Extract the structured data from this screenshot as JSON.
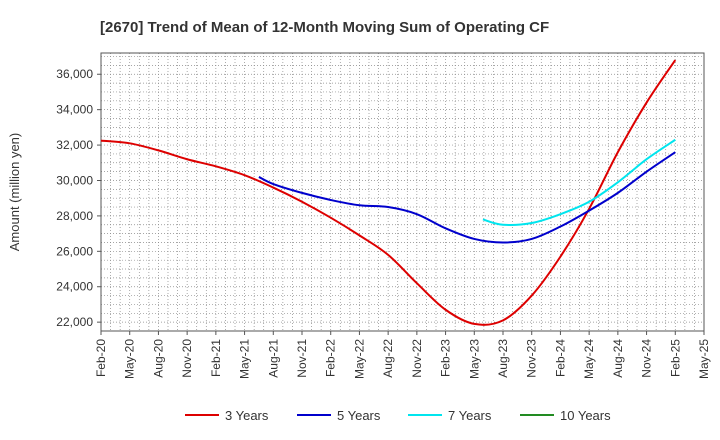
{
  "chart_data": {
    "type": "line",
    "title": "[2670]  Trend of Mean of 12-Month Moving Sum of Operating CF",
    "xlabel": "",
    "ylabel": "Amount (million yen)",
    "ylim": [
      21500,
      37200
    ],
    "yticks": [
      22000,
      24000,
      26000,
      28000,
      30000,
      32000,
      34000,
      36000
    ],
    "ytick_labels": [
      "22,000",
      "24,000",
      "26,000",
      "28,000",
      "30,000",
      "32,000",
      "34,000",
      "36,000"
    ],
    "xtick_labels": [
      "Feb-20",
      "May-20",
      "Aug-20",
      "Nov-20",
      "Feb-21",
      "May-21",
      "Aug-21",
      "Nov-21",
      "Feb-22",
      "May-22",
      "Aug-22",
      "Nov-22",
      "Feb-23",
      "May-23",
      "Aug-23",
      "Nov-23",
      "Feb-24",
      "May-24",
      "Aug-24",
      "Nov-24",
      "Feb-25",
      "May-25"
    ],
    "grid": true,
    "legend_position": "bottom",
    "series": [
      {
        "name": "3 Years",
        "color": "#dd0000",
        "x": [
          0,
          1,
          2,
          3,
          4,
          5,
          6,
          7,
          8,
          9,
          10,
          11,
          12,
          13,
          14,
          15,
          16,
          17,
          18,
          19,
          20
        ],
        "values": [
          32250,
          32100,
          31700,
          31200,
          30800,
          30300,
          29600,
          28800,
          27900,
          26900,
          25800,
          24200,
          22700,
          21900,
          22100,
          23500,
          25700,
          28400,
          31600,
          34400,
          36800
        ]
      },
      {
        "name": "5 Years",
        "color": "#0000cc",
        "x": [
          5.5,
          6,
          7,
          8,
          9,
          10,
          11,
          12,
          13,
          14,
          15,
          16,
          17,
          18,
          19,
          20
        ],
        "values": [
          30200,
          29800,
          29300,
          28900,
          28600,
          28500,
          28100,
          27300,
          26700,
          26500,
          26700,
          27400,
          28300,
          29300,
          30500,
          31600
        ]
      },
      {
        "name": "7 Years",
        "color": "#00e5ee",
        "x": [
          13.3,
          14,
          15,
          16,
          17,
          18,
          19,
          20
        ],
        "values": [
          27800,
          27500,
          27600,
          28100,
          28800,
          29900,
          31200,
          32300
        ]
      },
      {
        "name": "10 Years",
        "color": "#228b22",
        "x": [],
        "values": []
      }
    ]
  }
}
